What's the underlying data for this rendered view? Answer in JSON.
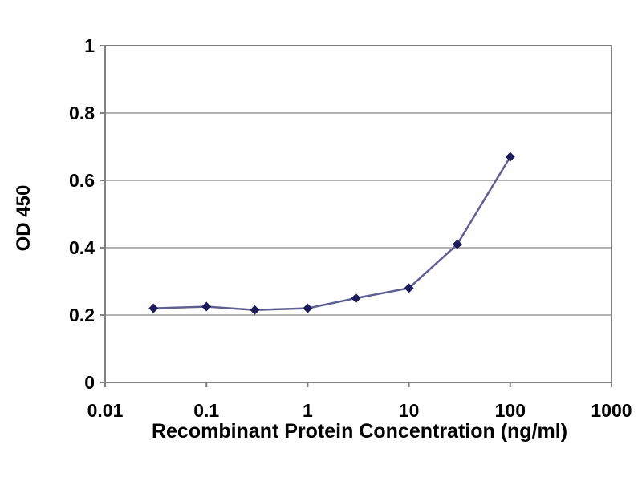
{
  "page": {
    "background": "#fefefe"
  },
  "chart_data": {
    "type": "line",
    "title": "",
    "xlabel": "Recombinant Protein Concentration (ng/ml)",
    "ylabel": "OD 450",
    "x_scale": "log",
    "xlim": [
      0.01,
      1000
    ],
    "ylim": [
      0,
      1
    ],
    "xticks": [
      0.01,
      0.1,
      1,
      10,
      100,
      1000
    ],
    "xtick_labels": [
      "0.01",
      "0.1",
      "1",
      "10",
      "100",
      "1000"
    ],
    "yticks": [
      0,
      0.2,
      0.4,
      0.6,
      0.8,
      1
    ],
    "ytick_labels": [
      "0",
      "0.2",
      "0.4",
      "0.6",
      "0.8",
      "1"
    ],
    "grid": "horizontal",
    "legend": null,
    "colors": {
      "frame": "#808080",
      "gridline": "#9a9a9a",
      "text": "#000000",
      "line": "#5f5f94",
      "marker": "#1c1c5a"
    },
    "series": [
      {
        "name": "OD 450",
        "marker": "diamond",
        "x": [
          0.03,
          0.1,
          0.3,
          1,
          3,
          10,
          30,
          100
        ],
        "y": [
          0.22,
          0.225,
          0.215,
          0.22,
          0.25,
          0.28,
          0.41,
          0.67
        ]
      }
    ]
  }
}
